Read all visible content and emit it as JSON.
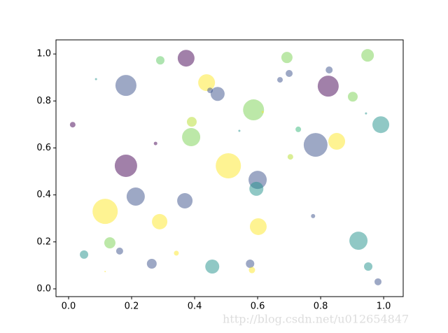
{
  "chart_data": {
    "type": "scatter",
    "x": [
      0.013,
      0.087,
      0.182,
      0.291,
      0.373,
      0.438,
      0.449,
      0.473,
      0.276,
      0.391,
      0.389,
      0.182,
      0.507,
      0.542,
      0.587,
      0.616,
      0.693,
      0.7,
      0.671,
      0.827,
      0.824,
      0.949,
      0.902,
      0.944,
      0.991,
      0.729,
      0.784,
      0.851,
      0.704,
      0.6,
      0.596,
      0.213,
      0.369,
      0.116,
      0.289,
      0.602,
      0.776,
      0.131,
      0.162,
      0.049,
      0.342,
      0.264,
      0.456,
      0.576,
      0.582,
      0.92,
      0.951,
      0.982,
      0.116
    ],
    "y": [
      0.699,
      0.893,
      0.866,
      0.973,
      0.982,
      0.878,
      0.845,
      0.83,
      0.619,
      0.711,
      0.646,
      0.524,
      0.524,
      0.673,
      0.762,
      0.753,
      0.985,
      0.917,
      0.89,
      0.932,
      0.863,
      0.994,
      0.818,
      0.747,
      0.699,
      0.679,
      0.613,
      0.628,
      0.562,
      0.464,
      0.426,
      0.393,
      0.375,
      0.33,
      0.286,
      0.265,
      0.31,
      0.196,
      0.161,
      0.146,
      0.152,
      0.107,
      0.095,
      0.107,
      0.08,
      0.205,
      0.095,
      0.03,
      0.074
    ],
    "sizes": [
      4,
      1.5,
      15,
      6,
      12,
      12,
      4,
      10,
      2.5,
      7,
      13,
      16,
      18,
      1.5,
      15,
      1.5,
      8,
      5,
      4,
      5,
      15,
      9,
      7,
      1.5,
      12,
      4,
      17,
      12,
      4,
      13,
      10,
      13,
      11,
      18,
      11,
      12,
      3,
      8,
      5,
      6,
      3.5,
      7,
      10,
      6,
      4.5,
      13,
      6,
      5,
      1
    ],
    "colors": [
      "#440154",
      "#21918c",
      "#3b528b",
      "#5ec962",
      "#440154",
      "#fde725",
      "#3b528b",
      "#3b528b",
      "#440154",
      "#b5de2b",
      "#7ad151",
      "#440154",
      "#fde725",
      "#21918c",
      "#7ad151",
      "#fde725",
      "#7ad151",
      "#3b528b",
      "#3b528b",
      "#3b528b",
      "#440154",
      "#7ad151",
      "#7ad151",
      "#21918c",
      "#21918c",
      "#35b779",
      "#3b528b",
      "#fde725",
      "#b5de2b",
      "#3b528b",
      "#21918c",
      "#3b528b",
      "#3b528b",
      "#fde725",
      "#fde725",
      "#fde725",
      "#3b528b",
      "#7ad151",
      "#3b528b",
      "#21918c",
      "#fde725",
      "#3b528b",
      "#21918c",
      "#3b528b",
      "#fde725",
      "#21918c",
      "#21918c",
      "#3b528b",
      "#fde725"
    ],
    "alpha": 0.5,
    "xlim": [
      -0.04,
      1.062
    ],
    "ylim": [
      -0.033,
      1.06
    ],
    "xticks": [
      {
        "value": 0,
        "label": "0.0"
      },
      0.2,
      0.4,
      0.6,
      0.8,
      {
        "value": 1,
        "label": "1.0"
      }
    ],
    "yticks": [
      {
        "value": 0,
        "label": "0.0"
      },
      0.2,
      0.4,
      0.6,
      0.8,
      {
        "value": 1,
        "label": "1.0"
      }
    ]
  },
  "watermark": "http://blog.csdn.net/u012654847"
}
